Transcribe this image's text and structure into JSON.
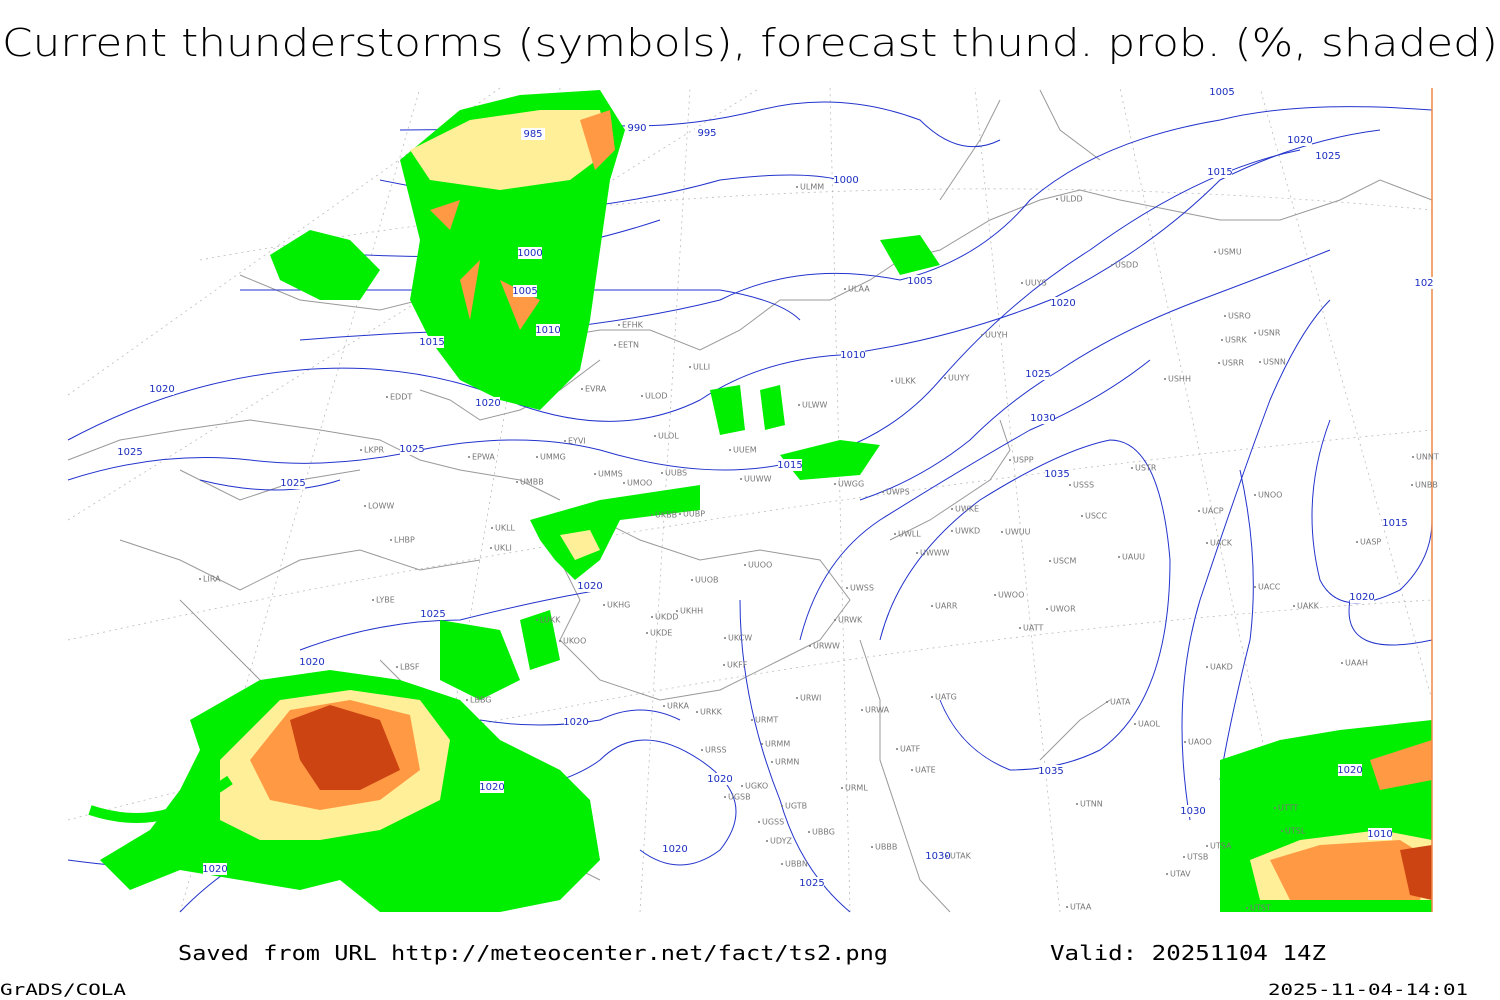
{
  "title": "Current thunderstorms (symbols), forecast thund. prob. (%, shaded)",
  "isobar_labels": [
    "1005",
    "990",
    "995",
    "985",
    "1020",
    "1025",
    "1000",
    "1015",
    "1000",
    "1005",
    "1005",
    "1020",
    "1010",
    "1015",
    "1010",
    "1025",
    "1020",
    "1020",
    "1030",
    "1025",
    "1025",
    "1015",
    "1025",
    "1035",
    "1015",
    "1020",
    "1025",
    "1020",
    "1020",
    "1020",
    "1035",
    "1020",
    "1020",
    "1020",
    "1030",
    "1010",
    "1020",
    "1030",
    "1020",
    "1025",
    "102"
  ],
  "stations": [
    "ULMM",
    "ULDD",
    "USDD",
    "USMU",
    "ULAA",
    "UUYS",
    "USRO",
    "USRK",
    "USNR",
    "USRR",
    "USNN",
    "EFHK",
    "EETN",
    "UUYH",
    "USHH",
    "ULLI",
    "EVRA",
    "ULOD",
    "ULKK",
    "UUYY",
    "EDDT",
    "ULWW",
    "EYVI",
    "ULOL",
    "UUEM",
    "LKPR",
    "EPWA",
    "UMMG",
    "USPP",
    "USTR",
    "UNNT",
    "UMMS",
    "UMOO",
    "UUBS",
    "UUWW",
    "USSS",
    "UNBB",
    "UWGG",
    "UMBB",
    "UWPS",
    "UNOO",
    "LOWW",
    "UKBB",
    "UUBP",
    "UWKE",
    "USCC",
    "UACP",
    "UKLL",
    "UWLL",
    "UWKD",
    "UWUU",
    "UACK",
    "UASP",
    "LHBP",
    "UKLI",
    "UWWW",
    "UUOO",
    "USCM",
    "UAUU",
    "LIRA",
    "UUOB",
    "UACC",
    "LYBE",
    "UKHH",
    "UKDD",
    "UKHG",
    "UWSS",
    "UARR",
    "UWOO",
    "UWOR",
    "UAKK",
    "LUKK",
    "UKOO",
    "UKDE",
    "UKCW",
    "URWK",
    "UATT",
    "UKFF",
    "URWW",
    "UAKD",
    "UAAH",
    "LBSF",
    "URWI",
    "UATG",
    "LBBG",
    "URKA",
    "URKK",
    "URWA",
    "UATA",
    "UAOL",
    "UAOO",
    "URMT",
    "URMM",
    "URSS",
    "URMN",
    "UATE",
    "UATF",
    "UGKO",
    "URML",
    "UGSB",
    "UGTB",
    "UTNN",
    "UGSS",
    "UBBG",
    "UDYZ",
    "UBBB",
    "UTAK",
    "UBBN",
    "UTSA",
    "UTSB",
    "UTAV",
    "UTTT",
    "UTSL",
    "UTST",
    "UTAA"
  ],
  "footer": {
    "saved": "Saved from URL http://meteocenter.net/fact/ts2.png",
    "valid": "Valid: 20251104 14Z",
    "software": "GrADS/COLA",
    "timestamp": "2025-11-04-14:01"
  }
}
